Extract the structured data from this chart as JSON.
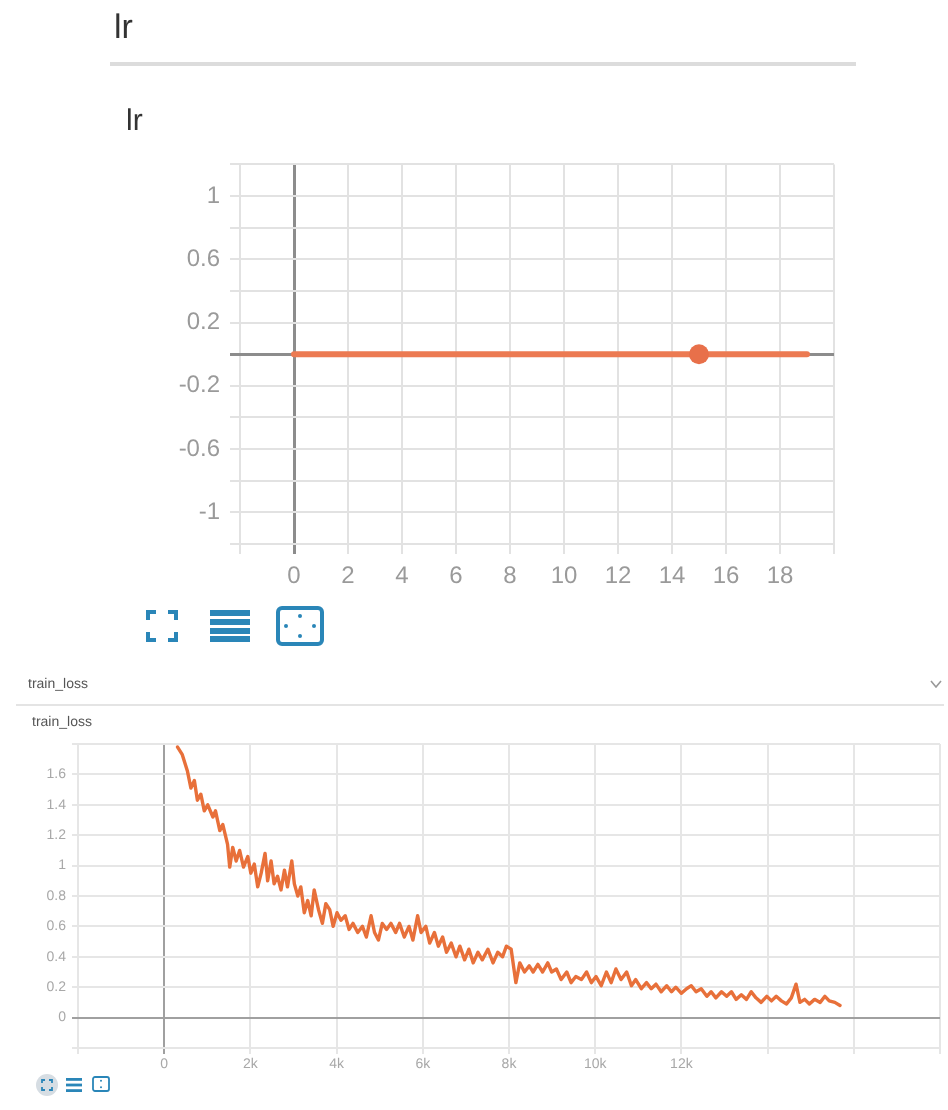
{
  "chart_data": [
    {
      "type": "line",
      "title": "lr",
      "subtitle": "lr",
      "xlim": [
        -2,
        20
      ],
      "xticks": [
        {
          "value": -2,
          "label": null
        },
        0,
        2,
        4,
        6,
        8,
        10,
        12,
        14,
        16,
        18,
        {
          "value": 20,
          "label": null
        }
      ],
      "ylim": [
        -1.2,
        1.2
      ],
      "yticks": [
        {
          "value": -1.2,
          "label": null
        },
        -1,
        {
          "value": -0.8,
          "label": null
        },
        -0.6,
        {
          "value": -0.4,
          "label": null
        },
        -0.2,
        {
          "value": 0,
          "label": null
        },
        0.2,
        {
          "value": 0.4,
          "label": null
        },
        0.6,
        {
          "value": 0.8,
          "label": null
        },
        1,
        {
          "value": 1.2,
          "label": null
        }
      ],
      "grid": true,
      "series": [
        {
          "type": "line",
          "color": "#ec7a52",
          "marker": "none",
          "x": [
            0,
            1,
            2,
            3,
            4,
            5,
            6,
            7,
            8,
            9,
            10,
            11,
            12,
            13,
            14,
            15,
            16,
            17,
            18,
            19
          ],
          "values": [
            0,
            0,
            0,
            0,
            0,
            0,
            0,
            0,
            0,
            0,
            0,
            0,
            0,
            0,
            0,
            0,
            0,
            0,
            0,
            0
          ]
        },
        {
          "type": "scatter",
          "color": "#e8704a",
          "marker": "circle",
          "x": [
            15
          ],
          "values": [
            0
          ]
        }
      ]
    },
    {
      "type": "line",
      "title": "train_loss",
      "subtitle": "train_loss",
      "xlim": [
        -2000,
        18000
      ],
      "xticks": [
        {
          "value": -2000,
          "label": null
        },
        0,
        {
          "value": 2000,
          "label": "2k"
        },
        {
          "value": 4000,
          "label": "4k"
        },
        {
          "value": 6000,
          "label": "6k"
        },
        {
          "value": 8000,
          "label": "8k"
        },
        {
          "value": 10000,
          "label": "10k"
        },
        {
          "value": 12000,
          "label": "12k"
        },
        {
          "value": 14000,
          "label": null
        },
        {
          "value": 16000,
          "label": null
        },
        {
          "value": 18000,
          "label": null
        }
      ],
      "ylim": [
        -0.2,
        1.8
      ],
      "yticks": [
        {
          "value": -0.2,
          "label": null
        },
        0,
        0.2,
        0.4,
        0.6,
        0.8,
        1,
        1.2,
        1.4,
        1.6,
        {
          "value": 1.8,
          "label": null
        }
      ],
      "grid": true,
      "marker": "none",
      "series": [
        {
          "color": "#e8703a",
          "x": [
            310,
            420,
            540,
            620,
            700,
            770,
            850,
            930,
            1010,
            1130,
            1190,
            1290,
            1360,
            1470,
            1520,
            1590,
            1670,
            1750,
            1840,
            1940,
            2010,
            2090,
            2170,
            2250,
            2340,
            2400,
            2480,
            2550,
            2630,
            2710,
            2790,
            2860,
            2960,
            3020,
            3100,
            3170,
            3250,
            3330,
            3410,
            3480,
            3580,
            3670,
            3750,
            3840,
            3920,
            4010,
            4100,
            4200,
            4290,
            4380,
            4490,
            4600,
            4690,
            4800,
            4880,
            4970,
            5060,
            5160,
            5260,
            5370,
            5460,
            5570,
            5680,
            5770,
            5880,
            5960,
            6070,
            6160,
            6270,
            6360,
            6460,
            6550,
            6660,
            6770,
            6860,
            6970,
            7070,
            7170,
            7280,
            7380,
            7510,
            7630,
            7740,
            7850,
            7940,
            8050,
            8160,
            8250,
            8360,
            8470,
            8560,
            8670,
            8780,
            8900,
            8990,
            9100,
            9210,
            9340,
            9440,
            9550,
            9680,
            9800,
            9910,
            10020,
            10140,
            10260,
            10370,
            10480,
            10600,
            10730,
            10840,
            10940,
            11070,
            11190,
            11300,
            11410,
            11530,
            11660,
            11770,
            11870,
            12000,
            12120,
            12230,
            12340,
            12460,
            12590,
            12690,
            12800,
            12930,
            13050,
            13160,
            13270,
            13390,
            13510,
            13620,
            13730,
            13850,
            13980,
            14090,
            14200,
            14320,
            14440,
            14550,
            14660,
            14750,
            14860,
            14970,
            15090,
            15220,
            15330,
            15430,
            15560,
            15680
          ],
          "values": [
            1.78,
            1.73,
            1.62,
            1.51,
            1.56,
            1.43,
            1.47,
            1.36,
            1.4,
            1.32,
            1.36,
            1.23,
            1.27,
            1.14,
            0.99,
            1.12,
            1.03,
            1.1,
            0.99,
            1.06,
            0.95,
            1.01,
            0.86,
            0.95,
            1.08,
            0.9,
            1.03,
            0.88,
            0.93,
            0.84,
            0.97,
            0.86,
            1.03,
            0.88,
            0.8,
            0.86,
            0.69,
            0.77,
            0.67,
            0.84,
            0.71,
            0.62,
            0.75,
            0.71,
            0.6,
            0.69,
            0.64,
            0.67,
            0.58,
            0.62,
            0.56,
            0.6,
            0.53,
            0.67,
            0.56,
            0.51,
            0.62,
            0.58,
            0.62,
            0.56,
            0.62,
            0.53,
            0.6,
            0.51,
            0.67,
            0.56,
            0.6,
            0.49,
            0.56,
            0.47,
            0.53,
            0.43,
            0.49,
            0.4,
            0.47,
            0.38,
            0.45,
            0.36,
            0.43,
            0.38,
            0.45,
            0.36,
            0.43,
            0.4,
            0.47,
            0.45,
            0.23,
            0.36,
            0.3,
            0.34,
            0.3,
            0.35,
            0.3,
            0.36,
            0.3,
            0.32,
            0.25,
            0.3,
            0.23,
            0.27,
            0.25,
            0.3,
            0.23,
            0.27,
            0.21,
            0.3,
            0.23,
            0.32,
            0.25,
            0.3,
            0.21,
            0.25,
            0.19,
            0.23,
            0.19,
            0.22,
            0.17,
            0.21,
            0.17,
            0.2,
            0.16,
            0.19,
            0.21,
            0.17,
            0.19,
            0.14,
            0.17,
            0.13,
            0.17,
            0.14,
            0.17,
            0.12,
            0.15,
            0.12,
            0.17,
            0.13,
            0.1,
            0.14,
            0.11,
            0.14,
            0.11,
            0.09,
            0.13,
            0.22,
            0.1,
            0.12,
            0.09,
            0.12,
            0.1,
            0.14,
            0.11,
            0.1,
            0.08
          ]
        }
      ]
    }
  ]
}
